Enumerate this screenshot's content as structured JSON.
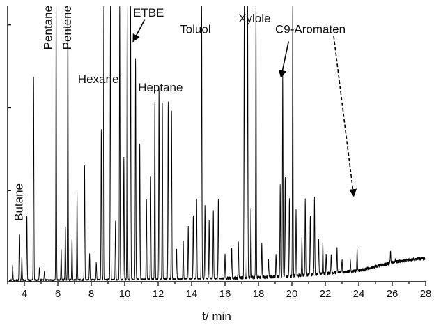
{
  "chart_data": {
    "type": "line",
    "title": "",
    "xlabel": "t/ min",
    "ylabel": "",
    "xlim": [
      3,
      28
    ],
    "ylim": [
      0,
      1
    ],
    "x_ticks": [
      4,
      6,
      8,
      10,
      12,
      14,
      16,
      18,
      20,
      22,
      24,
      26,
      28
    ],
    "x_tick_labels": [
      "4",
      "6",
      "8",
      "10",
      "12",
      "14",
      "16",
      "18",
      "20",
      "22",
      "24",
      "26",
      "28"
    ],
    "grid": false,
    "legend": "none",
    "baseline": [
      [
        3.0,
        0.005
      ],
      [
        10,
        0.008
      ],
      [
        16,
        0.012
      ],
      [
        20,
        0.02
      ],
      [
        24,
        0.04
      ],
      [
        25,
        0.055
      ],
      [
        26,
        0.07
      ],
      [
        27,
        0.08
      ],
      [
        28,
        0.085
      ]
    ],
    "peaks": [
      [
        3.3,
        0.06
      ],
      [
        3.7,
        0.17
      ],
      [
        3.85,
        0.09
      ],
      [
        4.15,
        0.24
      ],
      [
        4.55,
        0.74
      ],
      [
        4.9,
        0.05
      ],
      [
        5.2,
        0.04
      ],
      [
        5.9,
        1.0
      ],
      [
        6.2,
        0.12
      ],
      [
        6.45,
        0.2
      ],
      [
        6.6,
        1.0
      ],
      [
        6.85,
        0.16
      ],
      [
        7.15,
        0.32
      ],
      [
        7.6,
        0.42
      ],
      [
        7.9,
        0.1
      ],
      [
        8.3,
        0.07
      ],
      [
        8.6,
        0.55
      ],
      [
        8.75,
        1.0
      ],
      [
        9.15,
        1.0
      ],
      [
        9.45,
        0.22
      ],
      [
        9.7,
        1.0
      ],
      [
        9.95,
        0.45
      ],
      [
        10.15,
        1.0
      ],
      [
        10.35,
        1.0
      ],
      [
        10.65,
        0.81
      ],
      [
        10.9,
        0.5
      ],
      [
        11.3,
        0.3
      ],
      [
        11.55,
        0.38
      ],
      [
        11.8,
        0.65
      ],
      [
        12.05,
        0.7
      ],
      [
        12.25,
        0.65
      ],
      [
        12.6,
        0.65
      ],
      [
        12.8,
        0.62
      ],
      [
        13.1,
        0.12
      ],
      [
        13.5,
        0.15
      ],
      [
        13.8,
        0.2
      ],
      [
        14.1,
        0.24
      ],
      [
        14.3,
        0.3
      ],
      [
        14.6,
        1.0
      ],
      [
        14.8,
        0.28
      ],
      [
        15.05,
        0.22
      ],
      [
        15.3,
        0.26
      ],
      [
        15.6,
        0.3
      ],
      [
        16.0,
        0.1
      ],
      [
        16.4,
        0.12
      ],
      [
        16.8,
        0.14
      ],
      [
        17.15,
        1.0
      ],
      [
        17.35,
        1.0
      ],
      [
        17.55,
        0.27
      ],
      [
        17.85,
        1.0
      ],
      [
        18.2,
        0.14
      ],
      [
        18.6,
        0.08
      ],
      [
        19.05,
        0.1
      ],
      [
        19.3,
        0.35
      ],
      [
        19.45,
        0.75
      ],
      [
        19.6,
        0.38
      ],
      [
        19.85,
        0.3
      ],
      [
        20.05,
        1.0
      ],
      [
        20.25,
        0.26
      ],
      [
        20.6,
        0.16
      ],
      [
        20.8,
        0.3
      ],
      [
        21.1,
        0.24
      ],
      [
        21.35,
        0.3
      ],
      [
        21.6,
        0.16
      ],
      [
        21.85,
        0.14
      ],
      [
        22.05,
        0.1
      ],
      [
        22.35,
        0.1
      ],
      [
        22.7,
        0.12
      ],
      [
        23.0,
        0.08
      ],
      [
        23.5,
        0.08
      ],
      [
        23.9,
        0.12
      ],
      [
        24.3,
        0.04
      ],
      [
        25.9,
        0.11
      ],
      [
        26.2,
        0.08
      ]
    ],
    "annotations": [
      {
        "text": "Butane",
        "x": 3.9,
        "y": 0.22,
        "rotated": true
      },
      {
        "text": "Pentane",
        "x": 5.65,
        "y": 0.84,
        "rotated": true
      },
      {
        "text": "Pentene",
        "x": 6.8,
        "y": 0.84,
        "rotated": true
      },
      {
        "text": "Hexane",
        "x": 7.2,
        "y": 0.72,
        "rotated": false
      },
      {
        "text": "ETBE",
        "x": 10.5,
        "y": 0.96,
        "rotated": false
      },
      {
        "text": "Heptane",
        "x": 10.8,
        "y": 0.69,
        "rotated": false
      },
      {
        "text": "Toluol",
        "x": 13.3,
        "y": 0.9,
        "rotated": false
      },
      {
        "text": "Xylole",
        "x": 16.8,
        "y": 0.94,
        "rotated": false
      },
      {
        "text": "C9-Aromaten",
        "x": 19.0,
        "y": 0.9,
        "rotated": false
      }
    ],
    "arrows": [
      {
        "from": [
          11.2,
          0.95
        ],
        "to": [
          10.5,
          0.87
        ],
        "style": "solid",
        "label": "ETBE"
      },
      {
        "from": [
          19.8,
          0.87
        ],
        "to": [
          19.35,
          0.74
        ],
        "style": "solid",
        "label": "C9-Aromaten"
      },
      {
        "from": [
          22.5,
          0.89
        ],
        "to": [
          23.7,
          0.31
        ],
        "style": "dashed",
        "label": "C9-Aromaten"
      }
    ],
    "colors": {
      "line": "#000000",
      "axis": "#000000",
      "background": "#ffffff"
    }
  }
}
